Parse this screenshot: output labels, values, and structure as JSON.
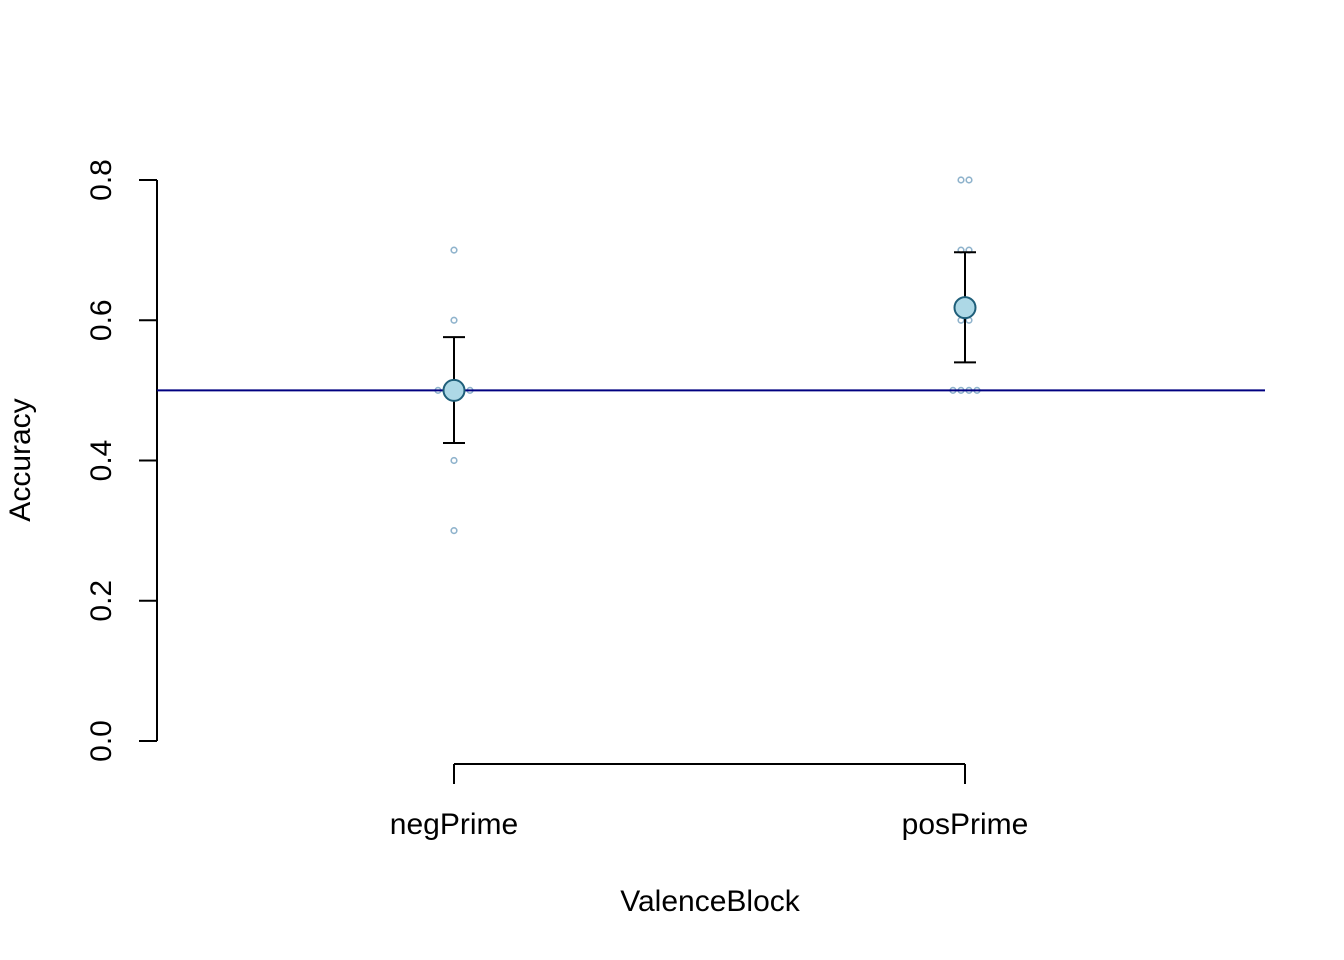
{
  "chart_data": {
    "type": "scatter",
    "title": "",
    "xlabel": "ValenceBlock",
    "ylabel": "Accuracy",
    "categories": [
      "negPrime",
      "posPrime"
    ],
    "ylim": [
      0,
      0.8
    ],
    "yticks": [
      "0.0",
      "0.2",
      "0.4",
      "0.6",
      "0.8"
    ],
    "reference_line": 0.5,
    "grid": false,
    "legend": "none",
    "series": [
      {
        "mean": [
          0.5,
          0.618
        ],
        "ci_lower": [
          0.425,
          0.54
        ],
        "ci_upper": [
          0.576,
          0.697
        ]
      }
    ],
    "raw_points": [
      [
        0.3,
        0.4,
        0.5,
        0.5,
        0.5,
        0.5,
        0.5,
        0.6,
        0.7
      ],
      [
        0.5,
        0.5,
        0.5,
        0.5,
        0.6,
        0.6,
        0.7,
        0.7,
        0.8,
        0.8
      ]
    ],
    "colors": {
      "mean_fill": "#add8e6",
      "mean_stroke": "#1f5f7a",
      "raw_stroke": "#8fb3cc",
      "reference_line": "#000080",
      "axes": "#000000"
    }
  }
}
